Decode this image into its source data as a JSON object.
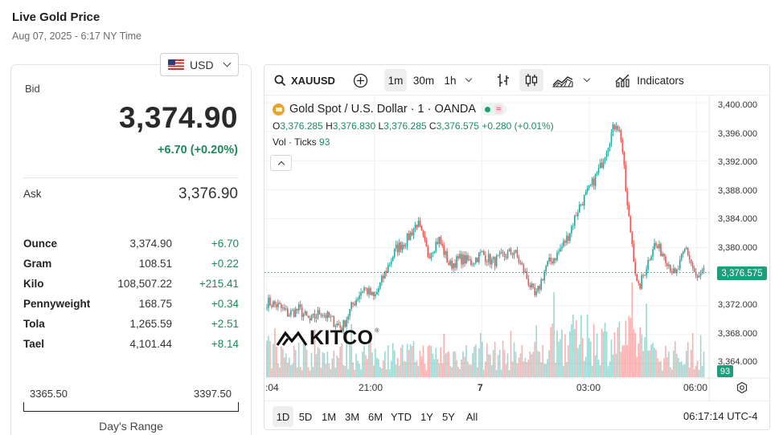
{
  "header": {
    "title": "Live Gold Price",
    "timestamp": "Aug 07, 2025 - 6:17 NY Time"
  },
  "currency": {
    "selected": "USD",
    "flag_icon": "us-flag-icon"
  },
  "quote": {
    "bid_label": "Bid",
    "bid": "3,374.90",
    "bid_change": "+6.70 (+0.20%)",
    "ask_label": "Ask",
    "ask": "3,376.90",
    "positive_color": "#1c8a5a"
  },
  "units": [
    {
      "name": "Ounce",
      "price": "3,374.90",
      "change": "+6.70"
    },
    {
      "name": "Gram",
      "price": "108.51",
      "change": "+0.22"
    },
    {
      "name": "Kilo",
      "price": "108,507.22",
      "change": "+215.41"
    },
    {
      "name": "Pennyweight",
      "price": "168.75",
      "change": "+0.34"
    },
    {
      "name": "Tola",
      "price": "1,265.59",
      "change": "+2.51"
    },
    {
      "name": "Tael",
      "price": "4,101.44",
      "change": "+8.14"
    }
  ],
  "days_range": {
    "low": "3365.50",
    "high": "3397.50",
    "label": "Day's Range"
  },
  "chart_toolbar": {
    "symbol": "XAUUSD",
    "intervals": [
      "1m",
      "30m",
      "1h"
    ],
    "active_interval": "1m",
    "indicators_label": "Indicators"
  },
  "chart_legend": {
    "title": "Gold Spot / U.S. Dollar · 1 · OANDA",
    "o_label": "O",
    "o": "3,376.285",
    "h_label": "H",
    "h": "3,376.830",
    "l_label": "L",
    "l": "3,376.285",
    "c_label": "C",
    "c": "3,376.575",
    "change": "+0.280 (+0.01%)",
    "vol_label": "Vol · Ticks",
    "vol": "93",
    "status_symbol": "≈"
  },
  "watermark": "KITCO",
  "price_tag": "3,376.575",
  "volume_tag": "93",
  "ranges": [
    "1D",
    "5D",
    "1M",
    "3M",
    "6M",
    "YTD",
    "1Y",
    "5Y",
    "All"
  ],
  "active_range": "1D",
  "clock": "06:17:14 UTC-4",
  "chart_data": {
    "type": "line",
    "title": "Gold Spot / U.S. Dollar · 1 · OANDA",
    "xlabel": "",
    "ylabel": "",
    "ylim": [
      3362,
      3401
    ],
    "y_ticks": [
      "3,400.000",
      "3,396.000",
      "3,392.000",
      "3,388.000",
      "3,384.000",
      "3,380.000",
      "3,376.000",
      "3,372.000",
      "3,368.000",
      "3,364.000"
    ],
    "y_tick_values": [
      3400,
      3396,
      3392,
      3388,
      3384,
      3380,
      3376,
      3372,
      3368,
      3364
    ],
    "x_ticks": [
      {
        "label": ":04",
        "hours": 0.0
      },
      {
        "label": "21:00",
        "hours": 3.0,
        "bold": false
      },
      {
        "label": "7",
        "hours": 6.0,
        "bold": true
      },
      {
        "label": "03:00",
        "hours": 9.0,
        "bold": false
      },
      {
        "label": "06:00",
        "hours": 12.0,
        "bold": false
      }
    ],
    "x_range_hours": [
      0,
      12.3
    ],
    "price_series": {
      "name": "",
      "hours": [
        0.0,
        0.3,
        0.6,
        0.9,
        1.2,
        1.5,
        1.8,
        2.1,
        2.4,
        2.7,
        3.0,
        3.3,
        3.6,
        3.9,
        4.2,
        4.5,
        4.8,
        5.1,
        5.4,
        5.7,
        6.0,
        6.3,
        6.6,
        6.9,
        7.2,
        7.5,
        7.8,
        8.1,
        8.4,
        8.7,
        9.0,
        9.3,
        9.6,
        9.75,
        9.9,
        10.05,
        10.2,
        10.35,
        10.5,
        10.8,
        11.1,
        11.4,
        11.7,
        12.0,
        12.2
      ],
      "values": [
        3372.5,
        3372.0,
        3370.8,
        3371.5,
        3369.8,
        3371.2,
        3370.0,
        3368.9,
        3372.2,
        3374.5,
        3373.0,
        3376.5,
        3379.8,
        3381.0,
        3383.5,
        3379.0,
        3381.2,
        3377.5,
        3378.5,
        3378.0,
        3379.2,
        3378.0,
        3378.8,
        3379.5,
        3376.5,
        3373.0,
        3377.5,
        3379.0,
        3381.5,
        3385.5,
        3388.0,
        3391.0,
        3395.5,
        3397.4,
        3395.0,
        3386.0,
        3380.5,
        3374.0,
        3376.0,
        3380.5,
        3379.0,
        3376.0,
        3380.0,
        3375.5,
        3376.6
      ]
    },
    "volume_series": {
      "name": "Vol · Ticks",
      "last": 93
    },
    "last_price": 3376.575,
    "colors": {
      "up": "#26a69a",
      "down": "#ef5350",
      "line": "#1e9e7c"
    },
    "grid": true
  }
}
